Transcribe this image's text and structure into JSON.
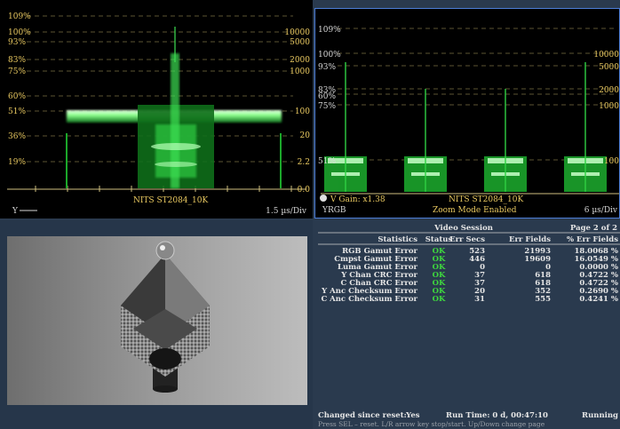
{
  "waveform_left": {
    "left_labels": [
      "109%",
      "100%",
      "93%",
      "83%",
      "75%",
      "60%",
      "51%",
      "36%",
      "19%"
    ],
    "right_labels": [
      "10000",
      "5000",
      "2000",
      "1000",
      "100",
      "20",
      "2.2",
      "0.0"
    ],
    "curve_label": "NITS  ST2084_10K",
    "channel": "Y",
    "timebase": "1.5 µs/Div"
  },
  "waveform_right": {
    "left_labels": [
      "109%",
      "100%",
      "93%",
      "83%",
      "60%",
      "75%",
      "51%"
    ],
    "right_labels": [
      "10000",
      "5000",
      "2000",
      "1000",
      "100"
    ],
    "gain_label": "V Gain: x1.38",
    "curve_label": "NITS  ST2084_10K",
    "mode_label": "Zoom Mode Enabled",
    "channel": "YRGB",
    "timebase": "6 µs/Div"
  },
  "stats": {
    "title": "Video Session",
    "page": "Page 2 of 2",
    "headers": [
      "Statistics",
      "Status",
      "Err Secs",
      "Err Fields",
      "% Err Fields"
    ],
    "rows": [
      {
        "name": "RGB Gamut Error",
        "status": "OK",
        "secs": "523",
        "fields": "21993",
        "pct": "18.0068 %"
      },
      {
        "name": "Cmpst Gamut Error",
        "status": "OK",
        "secs": "446",
        "fields": "19609",
        "pct": "16.0549 %"
      },
      {
        "name": "Luma Gamut Error",
        "status": "OK",
        "secs": "0",
        "fields": "0",
        "pct": "0.0000 %"
      },
      {
        "name": "Y Chan CRC Error",
        "status": "OK",
        "secs": "37",
        "fields": "618",
        "pct": "0.4722 %"
      },
      {
        "name": "C Chan CRC Error",
        "status": "OK",
        "secs": "37",
        "fields": "618",
        "pct": "0.4722 %"
      },
      {
        "name": "Y Anc Checksum Error",
        "status": "OK",
        "secs": "20",
        "fields": "352",
        "pct": "0.2690 %"
      },
      {
        "name": "C Anc Checksum Error",
        "status": "OK",
        "secs": "31",
        "fields": "555",
        "pct": "0.4241 %"
      }
    ],
    "changed_label": "Changed since reset:",
    "changed_value": "Yes",
    "runtime_label": "Run Time: 0 d, 00:47:10",
    "state": "Running",
    "help": "Press SEL – reset. L/R arrow key stop/start. Up/Down change page"
  },
  "colors": {
    "trace": "#36e04a",
    "accent": "#e8c860",
    "ok": "#3ed63e",
    "border": "#4c7dd6"
  }
}
